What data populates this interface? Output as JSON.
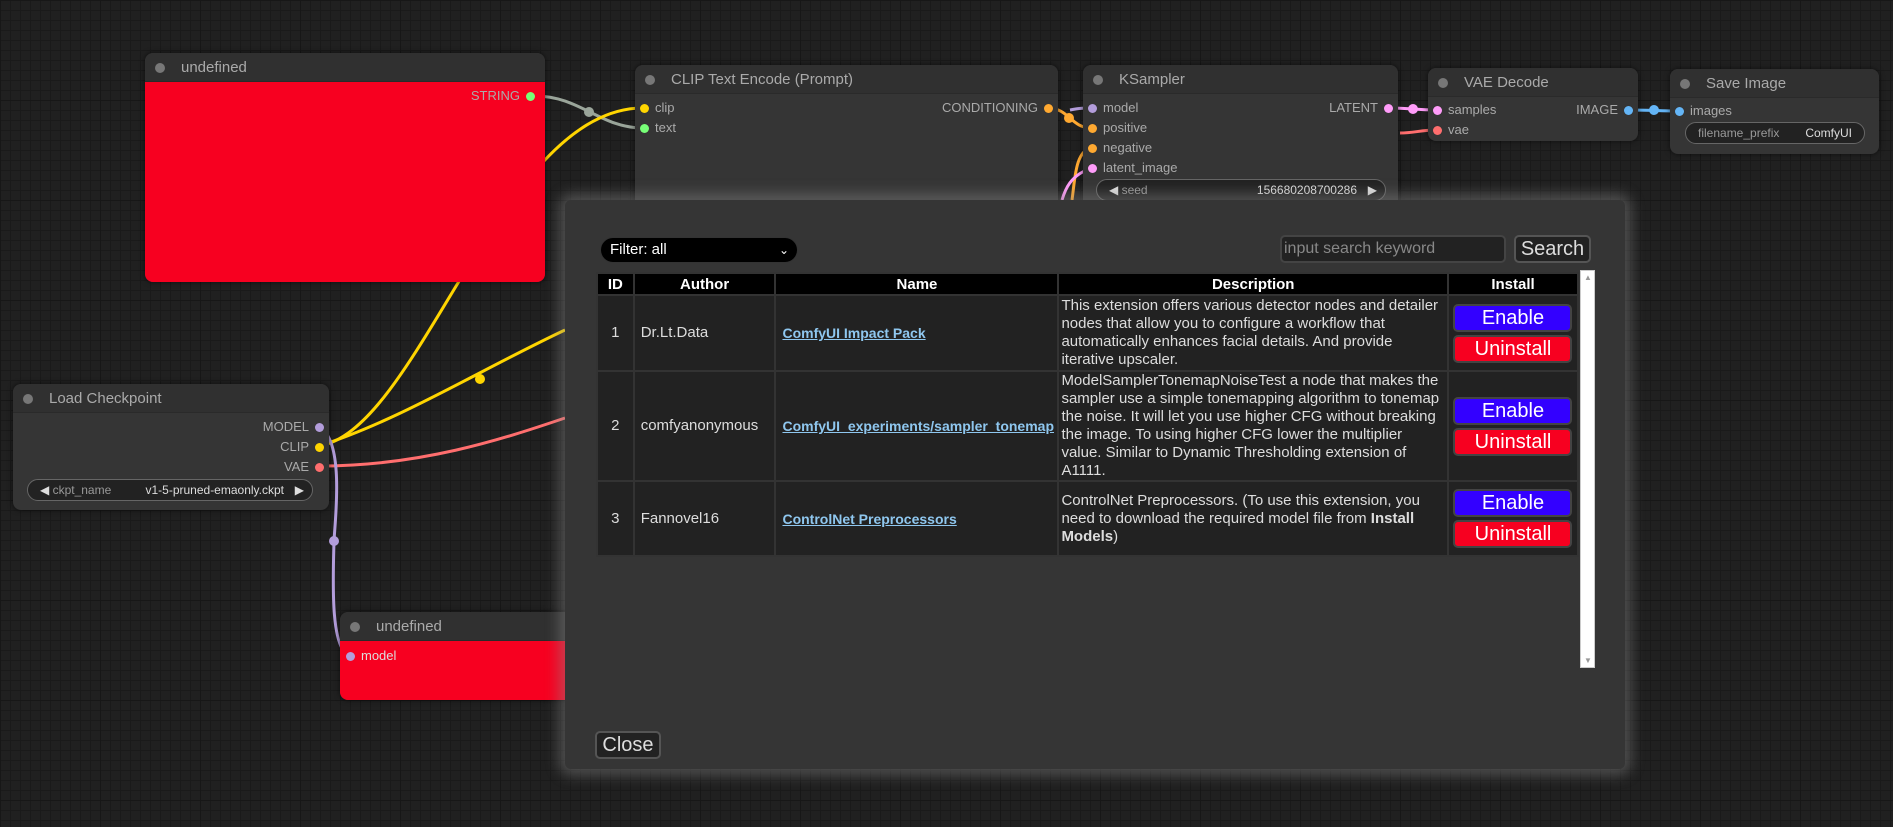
{
  "colors": {
    "clip": "#ffd500",
    "model": "#b39ddb",
    "vae": "#ff6e6e",
    "conditioning": "#ffa931",
    "latent": "#ff9cf9",
    "image": "#64b5f6",
    "string": "#77ff77",
    "error_node": "#f70020",
    "enable": "#3300ff",
    "uninstall": "#f70020"
  },
  "nodes": {
    "undef_top": {
      "title": "undefined",
      "output": "STRING"
    },
    "clip_encode": {
      "title": "CLIP Text Encode (Prompt)",
      "inputs": [
        "clip",
        "text"
      ],
      "output": "CONDITIONING"
    },
    "ksampler": {
      "title": "KSampler",
      "inputs": [
        "model",
        "positive",
        "negative",
        "latent_image"
      ],
      "output": "LATENT",
      "seed_label": "seed",
      "seed_value": "156680208700286"
    },
    "vae_decode": {
      "title": "VAE Decode",
      "inputs": [
        "samples",
        "vae"
      ],
      "output": "IMAGE"
    },
    "save_image": {
      "title": "Save Image",
      "input": "images",
      "prefix_label": "filename_prefix",
      "prefix_value": "ComfyUI"
    },
    "load_checkpoint": {
      "title": "Load Checkpoint",
      "outputs": [
        "MODEL",
        "CLIP",
        "VAE"
      ],
      "ckpt_label": "ckpt_name",
      "ckpt_value": "v1-5-pruned-emaonly.ckpt"
    },
    "undef_bottom": {
      "title": "undefined",
      "input": "model"
    }
  },
  "dialog": {
    "filter": "Filter: all",
    "search_placeholder": "input search keyword",
    "search_button": "Search",
    "columns": [
      "ID",
      "Author",
      "Name",
      "Description",
      "Install"
    ],
    "rows": [
      {
        "id": "1",
        "author": "Dr.Lt.Data",
        "name": "ComfyUI Impact Pack",
        "description": "This extension offers various detector nodes and detailer nodes that allow you to configure a workflow that automatically enhances facial details. And provide iterative upscaler.",
        "desc_bold": "",
        "desc_end": ""
      },
      {
        "id": "2",
        "author": "comfyanonymous",
        "name": "ComfyUI_experiments/sampler_tonemap",
        "description": "ModelSamplerTonemapNoiseTest a node that makes the sampler use a simple tonemapping algorithm to tonemap the noise. It will let you use higher CFG without breaking the image. To using higher CFG lower the multiplier value. Similar to Dynamic Thresholding extension of A1111.",
        "desc_bold": "",
        "desc_end": ""
      },
      {
        "id": "3",
        "author": "Fannovel16",
        "name": "ControlNet Preprocessors",
        "description": "ControlNet Preprocessors. (To use this extension, you need to download the required model file from ",
        "desc_bold": "Install Models",
        "desc_end": ")"
      }
    ],
    "enable_label": "Enable",
    "uninstall_label": "Uninstall",
    "close_button": "Close"
  }
}
